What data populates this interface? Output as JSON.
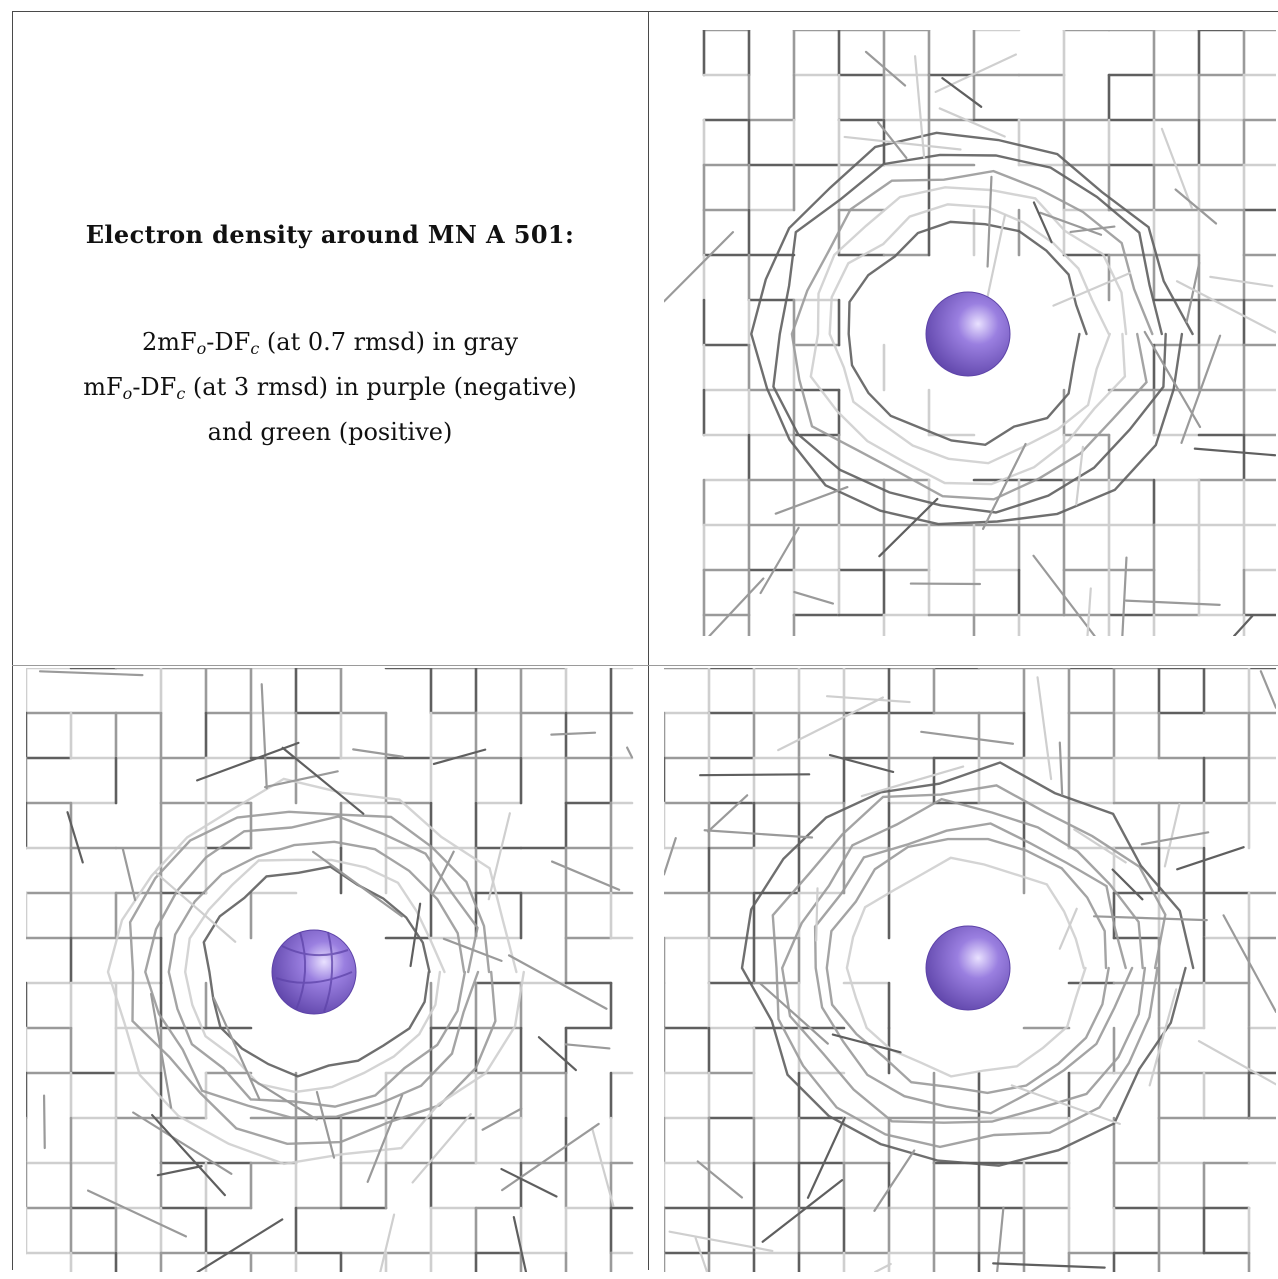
{
  "caption": {
    "title": "Electron density around MN A 501:",
    "line1_a": "2mF",
    "line1_sub1": "o",
    "line1_b": "-DF",
    "line1_sub2": "c",
    "line1_c": " (at 0.7 rmsd) in gray",
    "line2_a": "mF",
    "line2_sub1": "o",
    "line2_b": "-DF",
    "line2_sub2": "c",
    "line2_c": " (at 3 rmsd) in purple (negative)",
    "line3": "and green (positive)"
  },
  "colors": {
    "mesh_dark": "#5f5f5f",
    "mesh_mid": "#9a9a9a",
    "mesh_light": "#cfcfcf",
    "atom": "#9a7fe0",
    "atom_highlight": "#e9e1ff",
    "atom_dark": "#5d43a8",
    "frame": "#4a4a4a"
  },
  "panels": [
    {
      "name": "view-top-right",
      "seed": 11,
      "has_negative_density": false
    },
    {
      "name": "view-bottom-left",
      "seed": 29,
      "has_negative_density": true
    },
    {
      "name": "view-bottom-right",
      "seed": 47,
      "has_negative_density": false
    }
  ]
}
